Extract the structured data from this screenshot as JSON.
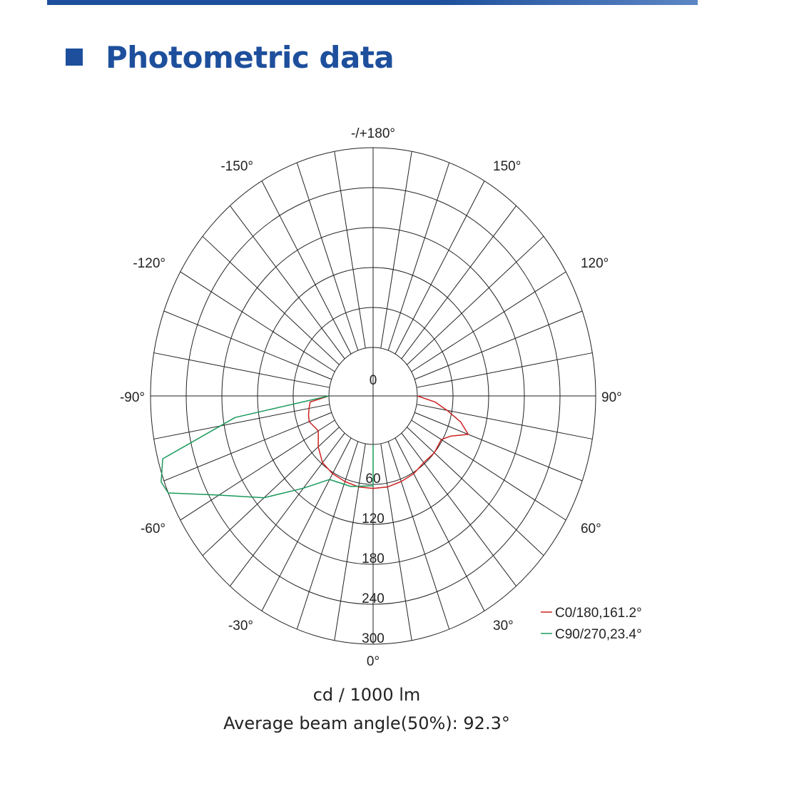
{
  "header": {
    "title": "Photometric data",
    "accent_color": "#1d4f9c"
  },
  "chart_data": {
    "type": "polar",
    "angle_labels": [
      {
        "angle": 180,
        "text": "-/+180°"
      },
      {
        "angle": 150,
        "text": "150°"
      },
      {
        "angle": -150,
        "text": "-150°"
      },
      {
        "angle": 120,
        "text": "120°"
      },
      {
        "angle": -120,
        "text": "-120°"
      },
      {
        "angle": 90,
        "text": "90°"
      },
      {
        "angle": -90,
        "text": "-90°"
      },
      {
        "angle": 60,
        "text": "60°"
      },
      {
        "angle": -60,
        "text": "-60°"
      },
      {
        "angle": 30,
        "text": "30°"
      },
      {
        "angle": -30,
        "text": "-30°"
      },
      {
        "angle": 0,
        "text": "0°"
      }
    ],
    "radial_ticks": [
      0,
      60,
      120,
      180,
      240,
      300
    ],
    "radial_range": [
      0,
      300
    ],
    "spoke_step_deg": 10,
    "series": [
      {
        "name": "C0/180,161.2°",
        "color": "#cc2222",
        "points": [
          [
            -90,
            0
          ],
          [
            -85,
            32
          ],
          [
            -80,
            35
          ],
          [
            -75,
            38
          ],
          [
            -70,
            40
          ],
          [
            -60,
            32
          ],
          [
            -50,
            46
          ],
          [
            -40,
            58
          ],
          [
            -30,
            62
          ],
          [
            -20,
            64
          ],
          [
            -10,
            66
          ],
          [
            0,
            66
          ],
          [
            10,
            66
          ],
          [
            20,
            64
          ],
          [
            30,
            62
          ],
          [
            40,
            58
          ],
          [
            50,
            60
          ],
          [
            60,
            58
          ],
          [
            65,
            70
          ],
          [
            70,
            96
          ],
          [
            75,
            78
          ],
          [
            80,
            52
          ],
          [
            85,
            30
          ],
          [
            90,
            0
          ]
        ]
      },
      {
        "name": "C90/270,23.4°",
        "color": "#1a9a5c",
        "points": [
          [
            -90,
            0
          ],
          [
            -82,
            160
          ],
          [
            -75,
            292
          ],
          [
            -70,
            305
          ],
          [
            -67,
            300
          ],
          [
            -60,
            225
          ],
          [
            -50,
            165
          ],
          [
            -40,
            108
          ],
          [
            -30,
            72
          ],
          [
            -15,
            68
          ],
          [
            0,
            62
          ],
          [
            0,
            0
          ]
        ]
      }
    ],
    "legend_position": "bottom-right"
  },
  "footer": {
    "unit": "cd / 1000 lm",
    "beam_angle": "Average beam angle(50%): 92.3°"
  }
}
